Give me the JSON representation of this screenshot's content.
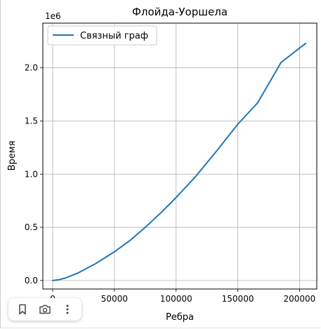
{
  "chart_data": {
    "type": "line",
    "title": "Флойда-Уоршела",
    "xlabel": "Ребра",
    "ylabel": "Время",
    "y_offset_label": "1e6",
    "xlim": [
      -8000,
      214000
    ],
    "ylim": [
      -0.08,
      2.42
    ],
    "xticks": [
      0,
      50000,
      100000,
      150000,
      200000
    ],
    "xtick_labels": [
      "0",
      "50000",
      "100000",
      "150000",
      "200000"
    ],
    "yticks": [
      0.0,
      0.5,
      1.0,
      1.5,
      2.0
    ],
    "ytick_labels": [
      "0.0",
      "0.5",
      "1.0",
      "1.5",
      "2.0"
    ],
    "grid": true,
    "legend_position": "upper-left",
    "series": [
      {
        "name": "Связный граф",
        "color": "#1f77b4",
        "x": [
          0,
          5000,
          10000,
          20000,
          35000,
          50000,
          63000,
          75000,
          88000,
          100000,
          116000,
          133000,
          150000,
          166000,
          185000,
          205000
        ],
        "y": [
          0.0,
          0.008,
          0.022,
          0.068,
          0.16,
          0.27,
          0.38,
          0.5,
          0.64,
          0.78,
          0.98,
          1.22,
          1.47,
          1.67,
          2.05,
          2.23
        ]
      }
    ]
  },
  "toolbar": {
    "icons": [
      "bookmark-icon",
      "camera-icon",
      "more-icon"
    ]
  }
}
